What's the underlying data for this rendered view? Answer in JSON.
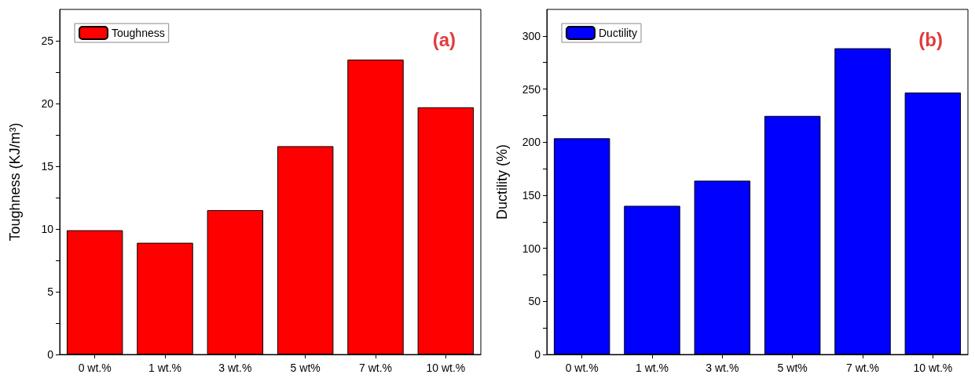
{
  "chart_data": [
    {
      "type": "bar",
      "ylabel": "Toughness (KJ/m³)",
      "categories": [
        "0 wt.%",
        "1 wt.%",
        "3 wt.%",
        "5 wt%",
        "7 wt.%",
        "10 wt.%"
      ],
      "series": [
        {
          "name": "Toughness",
          "color": "#ff0000",
          "values": [
            9.9,
            8.9,
            11.5,
            16.6,
            23.5,
            19.7
          ]
        }
      ],
      "ylim": [
        0,
        27.5
      ],
      "yticks": [
        0,
        {
          "value": 2.5,
          "label": null
        },
        5,
        {
          "value": 7.5,
          "label": null
        },
        10,
        {
          "value": 12.5,
          "label": null
        },
        15,
        {
          "value": 17.5,
          "label": null
        },
        20,
        {
          "value": 22.5,
          "label": null
        },
        25
      ],
      "annotations": [
        "(a)"
      ],
      "legend": "top left",
      "grid": false
    },
    {
      "type": "bar",
      "ylabel": "Ductility (%)",
      "categories": [
        "0 wt.%",
        "1 wt.%",
        "3 wt.%",
        "5 wt%",
        "7 wt.%",
        "10 wt.%"
      ],
      "series": [
        {
          "name": "Ductility",
          "color": "#0000ff",
          "values": [
            203.6,
            140,
            163.7,
            224.7,
            288.4,
            246.7
          ]
        }
      ],
      "ylim": [
        0,
        325
      ],
      "yticks": [
        0,
        {
          "value": 25,
          "label": null
        },
        50,
        {
          "value": 75,
          "label": null
        },
        100,
        {
          "value": 125,
          "label": null
        },
        150,
        {
          "value": 175,
          "label": null
        },
        200,
        {
          "value": 225,
          "label": null
        },
        250,
        {
          "value": 275,
          "label": null
        },
        300
      ],
      "annotations": [
        "(b)"
      ],
      "legend": "top left",
      "grid": false
    }
  ]
}
